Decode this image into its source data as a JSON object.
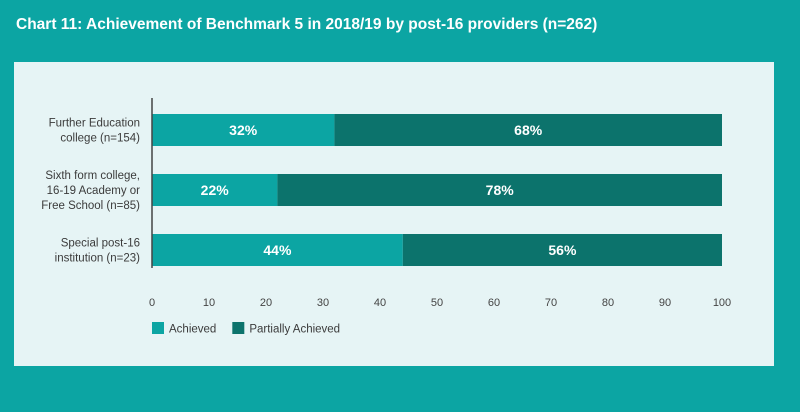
{
  "title": "Chart 11: Achievement of Benchmark 5 in 2018/19 by post-16 providers (n=262)",
  "colors": {
    "background": "#0ca5a3",
    "panel": "#e6f4f5",
    "achieved": "#0ca5a3",
    "partially_achieved": "#0c736c",
    "axis": "#444444"
  },
  "chart_data": {
    "type": "bar",
    "orientation": "horizontal",
    "stacked": true,
    "title": "Chart 11: Achievement of Benchmark 5 in 2018/19 by post-16 providers (n=262)",
    "categories": [
      [
        "Further Education",
        "college (n=154)"
      ],
      [
        "Sixth form college,",
        "16-19 Academy or",
        "Free School (n=85)"
      ],
      [
        "Special post-16",
        "institution (n=23)"
      ]
    ],
    "series": [
      {
        "name": "Achieved",
        "values": [
          32,
          22,
          44
        ],
        "labels": [
          "32%",
          "22%",
          "44%"
        ]
      },
      {
        "name": "Partially Achieved",
        "values": [
          68,
          78,
          56
        ],
        "labels": [
          "68%",
          "78%",
          "56%"
        ]
      }
    ],
    "xlim": [
      0,
      100
    ],
    "xticks": [
      0,
      10,
      20,
      30,
      40,
      50,
      60,
      70,
      80,
      90,
      100
    ],
    "grid": false,
    "legend_position": "bottom-left"
  }
}
